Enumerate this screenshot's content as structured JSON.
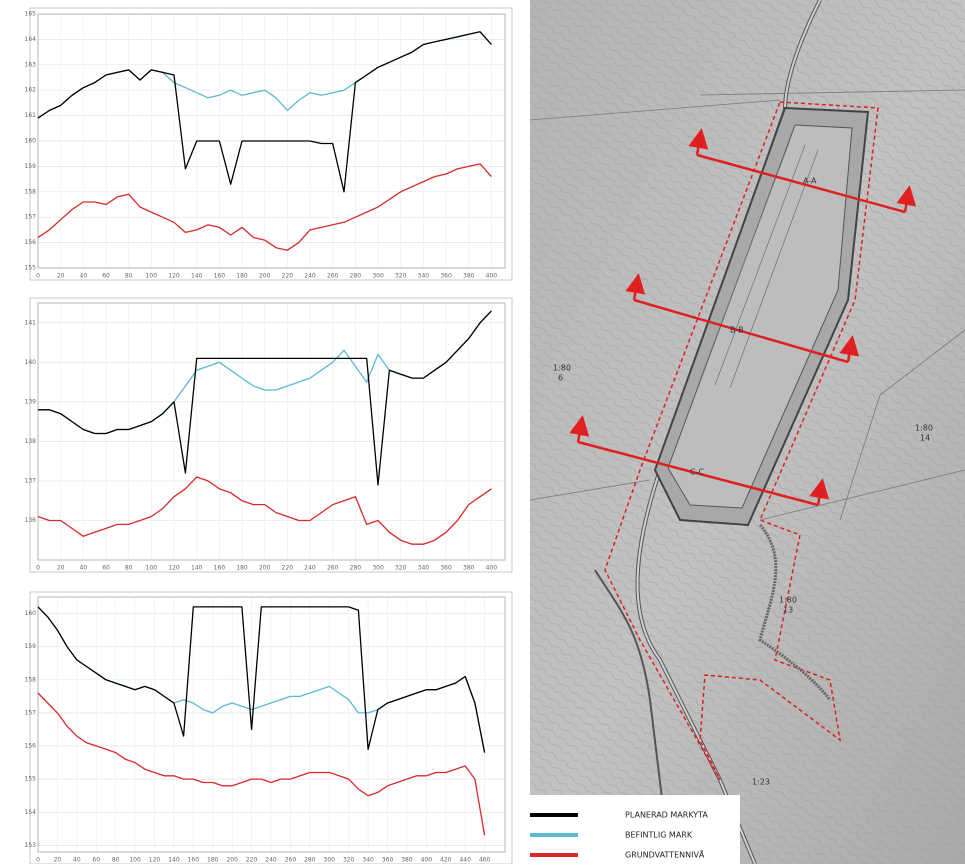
{
  "chart_data": [
    {
      "type": "line",
      "x": [
        0,
        10,
        20,
        30,
        40,
        50,
        60,
        70,
        80,
        90,
        100,
        110,
        120,
        130,
        140,
        150,
        160,
        170,
        180,
        190,
        200,
        210,
        220,
        230,
        240,
        250,
        260,
        270,
        280,
        290,
        300,
        310,
        320,
        330,
        340,
        350,
        360,
        370,
        380,
        390,
        400
      ],
      "xlim": [
        0,
        412
      ],
      "xticks": [
        0,
        20,
        40,
        60,
        80,
        100,
        120,
        140,
        160,
        180,
        200,
        220,
        240,
        260,
        280,
        300,
        320,
        340,
        360,
        380,
        400
      ],
      "ylim": [
        155,
        165
      ],
      "yticks": [
        155,
        156,
        157,
        158,
        159,
        160,
        161,
        162,
        163,
        164,
        165
      ],
      "grid": true,
      "series": [
        {
          "name": "PLANERAD MARKYTA",
          "color": "#000000",
          "values": [
            160.9,
            161.2,
            161.4,
            161.8,
            162.1,
            162.3,
            162.6,
            162.7,
            162.8,
            162.4,
            162.8,
            162.7,
            162.6,
            158.9,
            160.0,
            160.0,
            160.0,
            158.3,
            160.0,
            160.0,
            160.0,
            160.0,
            160.0,
            160.0,
            160.0,
            159.9,
            159.9,
            158.0,
            162.3,
            162.6,
            162.9,
            163.1,
            163.3,
            163.5,
            163.8,
            163.9,
            164.0,
            164.1,
            164.2,
            164.3,
            163.8
          ]
        },
        {
          "name": "BEFINTLIG MARK",
          "color": "#5bb8d4",
          "values": [
            160.9,
            161.2,
            161.4,
            161.8,
            162.1,
            162.3,
            162.6,
            162.7,
            162.8,
            162.4,
            162.8,
            162.7,
            162.3,
            162.1,
            161.9,
            161.7,
            161.8,
            162.0,
            161.8,
            161.9,
            162.0,
            161.7,
            161.2,
            161.6,
            161.9,
            161.8,
            161.9,
            162.0,
            162.3,
            162.6,
            162.9,
            163.1,
            163.3,
            163.5,
            163.8,
            163.9,
            164.0,
            164.1,
            164.2,
            164.3,
            163.8
          ]
        },
        {
          "name": "GRUNDVATTENNIVÅ",
          "color": "#d42a2a",
          "values": [
            156.2,
            156.5,
            156.9,
            157.3,
            157.6,
            157.6,
            157.5,
            157.8,
            157.9,
            157.4,
            157.2,
            157.0,
            156.8,
            156.4,
            156.5,
            156.7,
            156.6,
            156.3,
            156.6,
            156.2,
            156.1,
            155.8,
            155.7,
            156.0,
            156.5,
            156.6,
            156.7,
            156.8,
            157.0,
            157.2,
            157.4,
            157.7,
            158.0,
            158.2,
            158.4,
            158.6,
            158.7,
            158.9,
            159.0,
            159.1,
            158.6
          ]
        }
      ]
    },
    {
      "type": "line",
      "x": [
        0,
        10,
        20,
        30,
        40,
        50,
        60,
        70,
        80,
        90,
        100,
        110,
        120,
        130,
        140,
        150,
        160,
        170,
        180,
        190,
        200,
        210,
        220,
        230,
        240,
        250,
        260,
        270,
        280,
        290,
        300,
        310,
        320,
        330,
        340,
        350,
        360,
        370,
        380,
        390,
        400
      ],
      "xlim": [
        0,
        412
      ],
      "xticks": [
        0,
        20,
        40,
        60,
        80,
        100,
        120,
        140,
        160,
        180,
        200,
        220,
        240,
        260,
        280,
        300,
        320,
        340,
        360,
        380,
        400
      ],
      "ylim": [
        135,
        141.5
      ],
      "yticks": [
        136,
        137,
        138,
        139,
        140,
        141
      ],
      "grid": true,
      "series": [
        {
          "color": "#000000",
          "values": [
            138.8,
            138.8,
            138.7,
            138.5,
            138.3,
            138.2,
            138.2,
            138.3,
            138.3,
            138.4,
            138.5,
            138.7,
            139.0,
            137.2,
            140.1,
            140.1,
            140.1,
            140.1,
            140.1,
            140.1,
            140.1,
            140.1,
            140.1,
            140.1,
            140.1,
            140.1,
            140.1,
            140.1,
            140.1,
            140.1,
            136.9,
            139.8,
            139.7,
            139.6,
            139.6,
            139.8,
            140.0,
            140.3,
            140.6,
            141.0,
            141.3
          ]
        },
        {
          "color": "#5bb8d4",
          "values": [
            138.8,
            138.8,
            138.7,
            138.5,
            138.3,
            138.2,
            138.2,
            138.3,
            138.3,
            138.4,
            138.5,
            138.7,
            139.0,
            139.4,
            139.8,
            139.9,
            140.0,
            139.8,
            139.6,
            139.4,
            139.3,
            139.3,
            139.4,
            139.5,
            139.6,
            139.8,
            140.0,
            140.3,
            139.9,
            139.5,
            140.2,
            139.8,
            139.7,
            139.6,
            139.6,
            139.8,
            140.0,
            140.3,
            140.6,
            141.0,
            141.3
          ]
        },
        {
          "color": "#d42a2a",
          "values": [
            136.1,
            136.0,
            136.0,
            135.8,
            135.6,
            135.7,
            135.8,
            135.9,
            135.9,
            136.0,
            136.1,
            136.3,
            136.6,
            136.8,
            137.1,
            137.0,
            136.8,
            136.7,
            136.5,
            136.4,
            136.4,
            136.2,
            136.1,
            136.0,
            136.0,
            136.2,
            136.4,
            136.5,
            136.6,
            135.9,
            136.0,
            135.7,
            135.5,
            135.4,
            135.4,
            135.5,
            135.7,
            136.0,
            136.4,
            136.6,
            136.8
          ]
        }
      ]
    },
    {
      "type": "line",
      "x": [
        0,
        10,
        20,
        30,
        40,
        50,
        60,
        70,
        80,
        90,
        100,
        110,
        120,
        130,
        140,
        150,
        160,
        170,
        180,
        190,
        200,
        210,
        220,
        230,
        240,
        250,
        260,
        270,
        280,
        290,
        300,
        310,
        320,
        330,
        340,
        350,
        360,
        370,
        380,
        390,
        400,
        410,
        420,
        430,
        440,
        450,
        460
      ],
      "xlim": [
        0,
        481
      ],
      "xticks": [
        0,
        20,
        40,
        60,
        80,
        100,
        120,
        140,
        160,
        180,
        200,
        220,
        240,
        260,
        280,
        300,
        320,
        340,
        360,
        380,
        400,
        420,
        440,
        460
      ],
      "ylim": [
        152.8,
        160.5
      ],
      "yticks": [
        153,
        154,
        155,
        156,
        157,
        158,
        159,
        160
      ],
      "grid": true,
      "series": [
        {
          "color": "#000000",
          "values": [
            160.2,
            159.9,
            159.5,
            159.0,
            158.6,
            158.4,
            158.2,
            158.0,
            157.9,
            157.8,
            157.7,
            157.8,
            157.7,
            157.5,
            157.3,
            156.3,
            160.2,
            160.2,
            160.2,
            160.2,
            160.2,
            160.2,
            156.5,
            160.2,
            160.2,
            160.2,
            160.2,
            160.2,
            160.2,
            160.2,
            160.2,
            160.2,
            160.2,
            160.1,
            155.9,
            157.1,
            157.3,
            157.4,
            157.5,
            157.6,
            157.7,
            157.7,
            157.8,
            157.9,
            158.1,
            157.3,
            155.8
          ]
        },
        {
          "color": "#5bb8d4",
          "values": [
            160.2,
            159.9,
            159.5,
            159.0,
            158.6,
            158.4,
            158.2,
            158.0,
            157.9,
            157.8,
            157.7,
            157.8,
            157.7,
            157.5,
            157.3,
            157.4,
            157.3,
            157.1,
            157.0,
            157.2,
            157.3,
            157.2,
            157.1,
            157.2,
            157.3,
            157.4,
            157.5,
            157.5,
            157.6,
            157.7,
            157.8,
            157.6,
            157.4,
            157.0,
            157.0,
            157.1,
            157.3,
            157.4,
            157.5,
            157.6,
            157.7,
            157.7,
            157.8,
            157.9,
            158.1,
            157.3,
            155.8
          ]
        },
        {
          "color": "#d42a2a",
          "values": [
            157.6,
            157.3,
            157.0,
            156.6,
            156.3,
            156.1,
            156.0,
            155.9,
            155.8,
            155.6,
            155.5,
            155.3,
            155.2,
            155.1,
            155.1,
            155.0,
            155.0,
            154.9,
            154.9,
            154.8,
            154.8,
            154.9,
            155.0,
            155.0,
            154.9,
            155.0,
            155.0,
            155.1,
            155.2,
            155.2,
            155.2,
            155.1,
            155.0,
            154.7,
            154.5,
            154.6,
            154.8,
            154.9,
            155.0,
            155.1,
            155.1,
            155.2,
            155.2,
            155.3,
            155.4,
            155.0,
            153.3
          ]
        }
      ]
    }
  ],
  "map": {
    "sections": [
      "A-A",
      "B-B",
      "C-C"
    ],
    "labels": [
      "1:80",
      "6",
      "1:80",
      "14",
      "1:80",
      "13",
      "1:23"
    ]
  }
}
